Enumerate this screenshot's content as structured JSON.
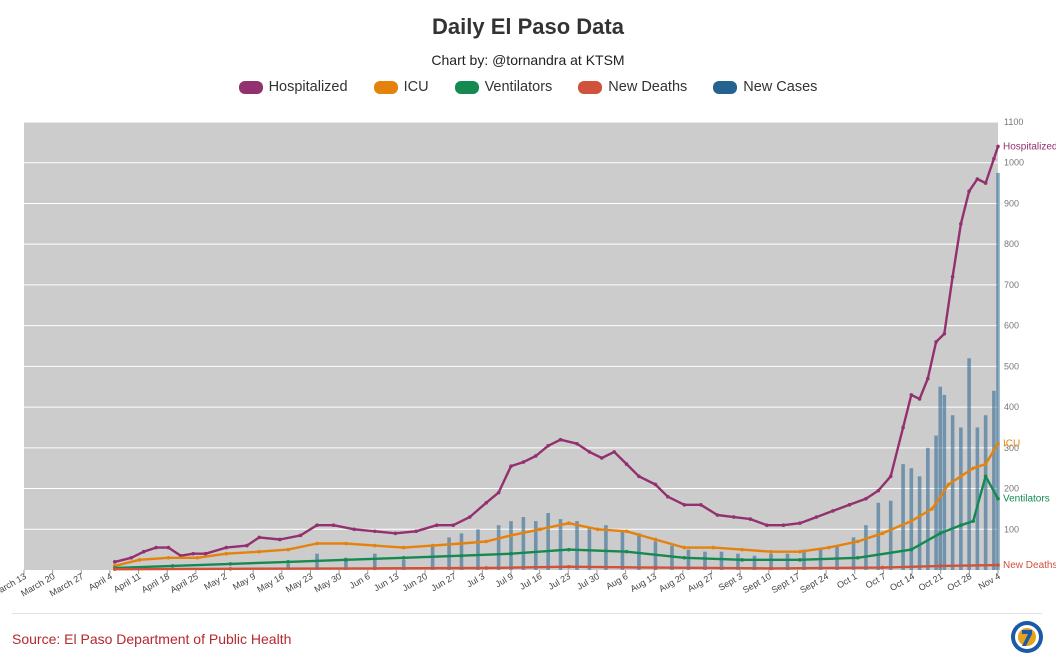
{
  "header": {
    "title": "Daily El Paso Data",
    "subtitle": "Chart by: @tornandra at KTSM"
  },
  "legend": [
    {
      "name": "Hospitalized",
      "color": "#93306f"
    },
    {
      "name": "ICU",
      "color": "#e5820d"
    },
    {
      "name": "Ventilators",
      "color": "#148a51"
    },
    {
      "name": "New Deaths",
      "color": "#d1523a"
    },
    {
      "name": "New Cases",
      "color": "#26628f"
    }
  ],
  "footer": {
    "source": "Source: El Paso Department of Public Health"
  },
  "chart_data": {
    "type": "line",
    "title": "Daily El Paso Data",
    "subtitle": "Chart by: @tornandra at KTSM",
    "background": "#cccccc",
    "grid": true,
    "legend_position": "top",
    "y_axis_position": "right",
    "ylim": [
      0,
      1100
    ],
    "yticks": [
      100,
      200,
      300,
      400,
      500,
      600,
      700,
      800,
      900,
      1000,
      1100
    ],
    "x_start": "2020-03-13",
    "x_end": "2020-11-04",
    "x_ticks": [
      "March 13",
      "March 20",
      "March 27",
      "April 4",
      "April 11",
      "April 18",
      "April 25",
      "May 2",
      "May 9",
      "May 16",
      "May 23",
      "May 30",
      "Jun 6",
      "Jun 13",
      "Jun 20",
      "Jun 27",
      "Jul 3",
      "Jul 9",
      "Jul 16",
      "Jul 23",
      "Jul 30",
      "Aug 6",
      "Aug 13",
      "Aug 20",
      "Aug 27",
      "Sept 3",
      "Sept 10",
      "Sept 17",
      "Sept 24",
      "Oct 1",
      "Oct 7",
      "Oct 14",
      "Oct 21",
      "Oct 28",
      "Nov 4"
    ],
    "end_labels": [
      "Hospitalized",
      "ICU",
      "Ventilators",
      "New Deaths"
    ],
    "series": [
      {
        "name": "Hospitalized",
        "color": "#93306f",
        "style": "line",
        "points": [
          [
            "2020-04-04",
            20
          ],
          [
            "2020-04-08",
            30
          ],
          [
            "2020-04-11",
            45
          ],
          [
            "2020-04-14",
            55
          ],
          [
            "2020-04-17",
            55
          ],
          [
            "2020-04-20",
            35
          ],
          [
            "2020-04-23",
            40
          ],
          [
            "2020-04-26",
            40
          ],
          [
            "2020-05-01",
            55
          ],
          [
            "2020-05-06",
            60
          ],
          [
            "2020-05-09",
            80
          ],
          [
            "2020-05-14",
            75
          ],
          [
            "2020-05-19",
            85
          ],
          [
            "2020-05-23",
            110
          ],
          [
            "2020-05-27",
            110
          ],
          [
            "2020-06-01",
            100
          ],
          [
            "2020-06-06",
            95
          ],
          [
            "2020-06-11",
            90
          ],
          [
            "2020-06-16",
            95
          ],
          [
            "2020-06-21",
            110
          ],
          [
            "2020-06-25",
            110
          ],
          [
            "2020-06-29",
            130
          ],
          [
            "2020-07-03",
            165
          ],
          [
            "2020-07-06",
            190
          ],
          [
            "2020-07-09",
            255
          ],
          [
            "2020-07-12",
            265
          ],
          [
            "2020-07-15",
            280
          ],
          [
            "2020-07-18",
            305
          ],
          [
            "2020-07-21",
            320
          ],
          [
            "2020-07-25",
            310
          ],
          [
            "2020-07-28",
            290
          ],
          [
            "2020-07-31",
            275
          ],
          [
            "2020-08-03",
            290
          ],
          [
            "2020-08-06",
            260
          ],
          [
            "2020-08-09",
            230
          ],
          [
            "2020-08-13",
            210
          ],
          [
            "2020-08-16",
            180
          ],
          [
            "2020-08-20",
            160
          ],
          [
            "2020-08-24",
            160
          ],
          [
            "2020-08-28",
            135
          ],
          [
            "2020-09-01",
            130
          ],
          [
            "2020-09-05",
            125
          ],
          [
            "2020-09-09",
            110
          ],
          [
            "2020-09-13",
            110
          ],
          [
            "2020-09-17",
            115
          ],
          [
            "2020-09-21",
            130
          ],
          [
            "2020-09-25",
            145
          ],
          [
            "2020-09-29",
            160
          ],
          [
            "2020-10-03",
            175
          ],
          [
            "2020-10-06",
            195
          ],
          [
            "2020-10-09",
            230
          ],
          [
            "2020-10-12",
            350
          ],
          [
            "2020-10-14",
            430
          ],
          [
            "2020-10-16",
            420
          ],
          [
            "2020-10-18",
            470
          ],
          [
            "2020-10-20",
            560
          ],
          [
            "2020-10-22",
            580
          ],
          [
            "2020-10-24",
            720
          ],
          [
            "2020-10-26",
            850
          ],
          [
            "2020-10-28",
            930
          ],
          [
            "2020-10-30",
            960
          ],
          [
            "2020-11-01",
            950
          ],
          [
            "2020-11-03",
            1010
          ],
          [
            "2020-11-04",
            1040
          ]
        ]
      },
      {
        "name": "ICU",
        "color": "#e5820d",
        "style": "line",
        "points": [
          [
            "2020-04-04",
            10
          ],
          [
            "2020-04-10",
            25
          ],
          [
            "2020-04-17",
            30
          ],
          [
            "2020-04-24",
            30
          ],
          [
            "2020-05-01",
            40
          ],
          [
            "2020-05-09",
            45
          ],
          [
            "2020-05-16",
            50
          ],
          [
            "2020-05-23",
            65
          ],
          [
            "2020-05-30",
            65
          ],
          [
            "2020-06-06",
            60
          ],
          [
            "2020-06-13",
            55
          ],
          [
            "2020-06-20",
            60
          ],
          [
            "2020-06-27",
            65
          ],
          [
            "2020-07-03",
            70
          ],
          [
            "2020-07-09",
            85
          ],
          [
            "2020-07-16",
            100
          ],
          [
            "2020-07-23",
            115
          ],
          [
            "2020-07-30",
            100
          ],
          [
            "2020-08-06",
            95
          ],
          [
            "2020-08-13",
            75
          ],
          [
            "2020-08-20",
            55
          ],
          [
            "2020-08-27",
            55
          ],
          [
            "2020-09-03",
            50
          ],
          [
            "2020-09-10",
            45
          ],
          [
            "2020-09-17",
            45
          ],
          [
            "2020-09-24",
            55
          ],
          [
            "2020-10-01",
            70
          ],
          [
            "2020-10-07",
            90
          ],
          [
            "2020-10-14",
            120
          ],
          [
            "2020-10-19",
            150
          ],
          [
            "2020-10-23",
            210
          ],
          [
            "2020-10-26",
            230
          ],
          [
            "2020-10-29",
            250
          ],
          [
            "2020-11-01",
            260
          ],
          [
            "2020-11-04",
            310
          ]
        ]
      },
      {
        "name": "Ventilators",
        "color": "#148a51",
        "style": "line",
        "points": [
          [
            "2020-04-04",
            5
          ],
          [
            "2020-04-18",
            10
          ],
          [
            "2020-05-02",
            15
          ],
          [
            "2020-05-16",
            20
          ],
          [
            "2020-05-30",
            25
          ],
          [
            "2020-06-13",
            30
          ],
          [
            "2020-06-27",
            35
          ],
          [
            "2020-07-09",
            40
          ],
          [
            "2020-07-23",
            50
          ],
          [
            "2020-08-06",
            45
          ],
          [
            "2020-08-20",
            30
          ],
          [
            "2020-09-03",
            25
          ],
          [
            "2020-09-17",
            25
          ],
          [
            "2020-10-01",
            30
          ],
          [
            "2020-10-14",
            50
          ],
          [
            "2020-10-21",
            90
          ],
          [
            "2020-10-26",
            110
          ],
          [
            "2020-10-29",
            120
          ],
          [
            "2020-11-01",
            230
          ],
          [
            "2020-11-04",
            175
          ]
        ]
      },
      {
        "name": "New Deaths",
        "color": "#d1523a",
        "style": "line",
        "points": [
          [
            "2020-04-04",
            2
          ],
          [
            "2020-05-02",
            3
          ],
          [
            "2020-06-06",
            4
          ],
          [
            "2020-07-03",
            5
          ],
          [
            "2020-07-23",
            8
          ],
          [
            "2020-08-13",
            6
          ],
          [
            "2020-09-10",
            4
          ],
          [
            "2020-10-07",
            6
          ],
          [
            "2020-10-21",
            10
          ],
          [
            "2020-11-04",
            12
          ]
        ]
      },
      {
        "name": "New Cases",
        "color": "#26628f",
        "style": "bar",
        "points": [
          [
            "2020-04-18",
            5
          ],
          [
            "2020-05-16",
            15
          ],
          [
            "2020-05-23",
            40
          ],
          [
            "2020-05-30",
            30
          ],
          [
            "2020-06-06",
            40
          ],
          [
            "2020-06-13",
            25
          ],
          [
            "2020-06-20",
            60
          ],
          [
            "2020-06-24",
            80
          ],
          [
            "2020-06-27",
            90
          ],
          [
            "2020-07-01",
            100
          ],
          [
            "2020-07-06",
            110
          ],
          [
            "2020-07-09",
            120
          ],
          [
            "2020-07-12",
            130
          ],
          [
            "2020-07-15",
            120
          ],
          [
            "2020-07-18",
            140
          ],
          [
            "2020-07-21",
            125
          ],
          [
            "2020-07-25",
            120
          ],
          [
            "2020-07-28",
            105
          ],
          [
            "2020-08-01",
            110
          ],
          [
            "2020-08-05",
            95
          ],
          [
            "2020-08-09",
            90
          ],
          [
            "2020-08-13",
            70
          ],
          [
            "2020-08-17",
            60
          ],
          [
            "2020-08-21",
            50
          ],
          [
            "2020-08-25",
            45
          ],
          [
            "2020-08-29",
            45
          ],
          [
            "2020-09-02",
            40
          ],
          [
            "2020-09-06",
            35
          ],
          [
            "2020-09-10",
            40
          ],
          [
            "2020-09-14",
            40
          ],
          [
            "2020-09-18",
            50
          ],
          [
            "2020-09-22",
            55
          ],
          [
            "2020-09-26",
            60
          ],
          [
            "2020-09-30",
            80
          ],
          [
            "2020-10-03",
            110
          ],
          [
            "2020-10-06",
            165
          ],
          [
            "2020-10-09",
            170
          ],
          [
            "2020-10-12",
            260
          ],
          [
            "2020-10-14",
            250
          ],
          [
            "2020-10-16",
            230
          ],
          [
            "2020-10-18",
            300
          ],
          [
            "2020-10-20",
            330
          ],
          [
            "2020-10-21",
            450
          ],
          [
            "2020-10-22",
            430
          ],
          [
            "2020-10-24",
            380
          ],
          [
            "2020-10-26",
            350
          ],
          [
            "2020-10-28",
            520
          ],
          [
            "2020-10-30",
            350
          ],
          [
            "2020-11-01",
            380
          ],
          [
            "2020-11-03",
            440
          ],
          [
            "2020-11-04",
            975
          ]
        ]
      }
    ]
  }
}
